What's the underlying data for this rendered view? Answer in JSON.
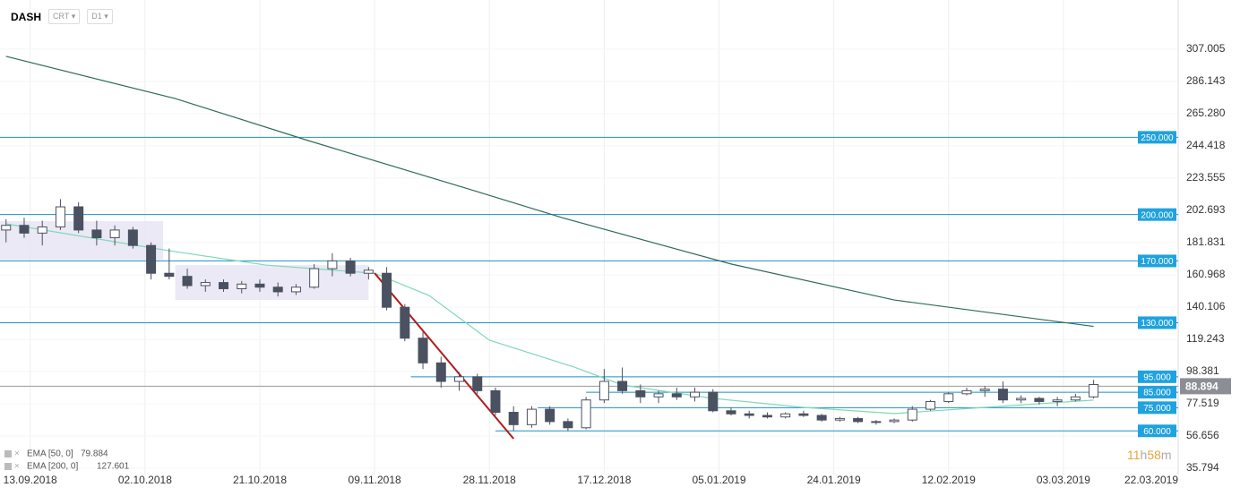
{
  "header": {
    "symbol": "DASH",
    "group": "CRT",
    "interval": "D1"
  },
  "chart_data": {
    "type": "candlestick",
    "xlim": [
      "08.09.2018",
      "22.03.2019"
    ],
    "xticks": [
      "13.09.2018",
      "02.10.2018",
      "21.10.2018",
      "09.11.2018",
      "28.11.2018",
      "17.12.2018",
      "05.01.2019",
      "24.01.2019",
      "12.02.2019",
      "03.03.2019",
      "22.03.2019"
    ],
    "ylim": [
      31.74,
      338.88
    ],
    "yticks": [
      35.794,
      56.656,
      77.519,
      98.381,
      119.243,
      140.106,
      160.968,
      181.831,
      202.693,
      223.555,
      244.418,
      {
        "value": 265.28,
        "label": "265.280"
      },
      286.143,
      307.005
    ],
    "up_color": "#ffffff",
    "down_color": "#4a5160",
    "edge_color": "#4a5160",
    "x": [
      "09.09.2018",
      "12.09.2018",
      "15.09.2018",
      "18.09.2018",
      "21.09.2018",
      "24.09.2018",
      "27.09.2018",
      "30.09.2018",
      "03.10.2018",
      "06.10.2018",
      "09.10.2018",
      "12.10.2018",
      "15.10.2018",
      "18.10.2018",
      "21.10.2018",
      "24.10.2018",
      "27.10.2018",
      "30.10.2018",
      "02.11.2018",
      "05.11.2018",
      "08.11.2018",
      "11.11.2018",
      "14.11.2018",
      "17.11.2018",
      "20.11.2018",
      "23.11.2018",
      "26.11.2018",
      "29.11.2018",
      "02.12.2018",
      "05.12.2018",
      "08.12.2018",
      "11.12.2018",
      "14.12.2018",
      "17.12.2018",
      "20.12.2018",
      "23.12.2018",
      "26.12.2018",
      "29.12.2018",
      "01.01.2019",
      "04.01.2019",
      "07.01.2019",
      "10.01.2019",
      "13.01.2019",
      "16.01.2019",
      "19.01.2019",
      "22.01.2019",
      "25.01.2019",
      "28.01.2019",
      "31.01.2019",
      "03.02.2019",
      "06.02.2019",
      "09.02.2019",
      "12.02.2019",
      "15.02.2019",
      "18.02.2019",
      "21.02.2019",
      "24.02.2019",
      "27.02.2019",
      "02.03.2019",
      "05.03.2019",
      "08.03.2019"
    ],
    "open": [
      190,
      193,
      188,
      192,
      205,
      190,
      185,
      190,
      180,
      162,
      160,
      154,
      156,
      152,
      155,
      153,
      150,
      153,
      165,
      170,
      162,
      162,
      140,
      120,
      104,
      92,
      95,
      86,
      72,
      64,
      74,
      66,
      62,
      80,
      92,
      86,
      82,
      84,
      82,
      85,
      73,
      71,
      70,
      69,
      71,
      70,
      67,
      68,
      66,
      66,
      67,
      74,
      79,
      84,
      86,
      87,
      80,
      81,
      79,
      80,
      82
    ],
    "high": [
      197,
      198,
      196,
      210,
      208,
      196,
      193,
      192,
      182,
      178,
      165,
      158,
      158,
      157,
      158,
      156,
      155,
      168,
      175,
      172,
      166,
      166,
      142,
      124,
      108,
      98,
      97,
      88,
      76,
      76,
      76,
      68,
      82,
      100,
      101,
      90,
      86,
      88,
      88,
      87,
      75,
      73,
      72,
      72,
      73,
      71,
      69,
      69,
      67,
      68,
      76,
      80,
      85,
      88,
      89,
      92,
      83,
      82,
      82,
      84,
      93
    ],
    "low": [
      182,
      185,
      180,
      190,
      188,
      180,
      180,
      178,
      158,
      158,
      152,
      150,
      150,
      149,
      150,
      147,
      148,
      152,
      160,
      160,
      158,
      138,
      118,
      100,
      88,
      86,
      84,
      70,
      60,
      62,
      64,
      60,
      61,
      78,
      84,
      78,
      78,
      80,
      79,
      72,
      70,
      68,
      68,
      68,
      69,
      66,
      66,
      65,
      64,
      65,
      66,
      73,
      78,
      83,
      82,
      78,
      78,
      77,
      76,
      79,
      81
    ],
    "close": [
      193,
      188,
      192,
      205,
      190,
      185,
      190,
      180,
      162,
      160,
      154,
      156,
      152,
      155,
      153,
      150,
      153,
      165,
      170,
      162,
      164,
      140,
      120,
      104,
      92,
      95,
      86,
      72,
      64,
      74,
      66,
      62,
      80,
      92,
      86,
      82,
      84,
      82,
      85,
      73,
      71,
      70,
      69,
      71,
      70,
      67,
      68,
      66,
      66,
      67,
      74,
      79,
      84,
      86,
      87,
      80,
      81,
      79,
      80,
      82,
      90
    ],
    "indicators": [
      {
        "name": "EMA [50, 0]",
        "last_value": 79.884,
        "color": "#7fd8b8",
        "x": [
          "09.09.2018",
          "06.10.2018",
          "22.10.2018",
          "09.11.2018",
          "18.11.2018",
          "28.11.2018",
          "12.12.2018",
          "20.12.2018",
          "04.01.2019",
          "19.01.2019",
          "03.02.2019",
          "18.02.2019",
          "08.03.2019"
        ],
        "values": [
          194,
          176.6,
          167.3,
          162,
          147.6,
          118.7,
          101.3,
          89.7,
          81,
          75.2,
          71.2,
          75.2,
          79.9
        ]
      },
      {
        "name": "EMA [200, 0]",
        "last_value": 127.601,
        "color": "#2f6b57",
        "x": [
          "09.09.2018",
          "07.10.2018",
          "29.10.2018",
          "24.11.2018",
          "10.12.2018",
          "07.01.2019",
          "03.02.2019",
          "08.03.2019"
        ],
        "values": [
          302.4,
          275.1,
          247.9,
          217.2,
          198,
          168,
          144.7,
          127.6
        ]
      }
    ],
    "levels": [
      {
        "value": 250,
        "label": "250.000"
      },
      {
        "value": 200,
        "label": "200.000"
      },
      {
        "value": 170,
        "label": "170.000"
      },
      {
        "value": 130,
        "label": "130.000"
      },
      {
        "value": 95,
        "label": "95.000",
        "start": "15.11.2018"
      },
      {
        "value": 85,
        "label": "85.000",
        "start": "14.12.2018"
      },
      {
        "value": 75,
        "label": "75.000",
        "start": "06.12.2018"
      },
      {
        "value": 60,
        "label": "60.000",
        "start": "29.11.2018"
      }
    ],
    "level_color": "#1f8fc4",
    "last_price": 88.894,
    "zones": [
      {
        "x": [
          "08.09.2018",
          "05.10.2018"
        ],
        "y": [
          170.8,
          195.7
        ]
      },
      {
        "x": [
          "07.10.2018",
          "08.11.2018"
        ],
        "y": [
          144.7,
          167.3
        ]
      }
    ],
    "trend_line": {
      "x": [
        "09.11.2018",
        "02.12.2018"
      ],
      "y": [
        162.1,
        54.9
      ],
      "color": "#b01c1c"
    },
    "timer": {
      "hours": "11",
      "hours_unit": "h",
      "minutes": "58",
      "minutes_unit": "m"
    }
  }
}
